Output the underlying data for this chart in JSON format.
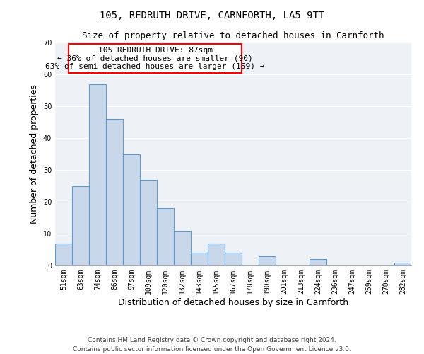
{
  "title": "105, REDRUTH DRIVE, CARNFORTH, LA5 9TT",
  "subtitle": "Size of property relative to detached houses in Carnforth",
  "xlabel": "Distribution of detached houses by size in Carnforth",
  "ylabel": "Number of detached properties",
  "bar_labels": [
    "51sqm",
    "63sqm",
    "74sqm",
    "86sqm",
    "97sqm",
    "109sqm",
    "120sqm",
    "132sqm",
    "143sqm",
    "155sqm",
    "167sqm",
    "178sqm",
    "190sqm",
    "201sqm",
    "213sqm",
    "224sqm",
    "236sqm",
    "247sqm",
    "259sqm",
    "270sqm",
    "282sqm"
  ],
  "bar_values": [
    7,
    25,
    57,
    46,
    35,
    27,
    18,
    11,
    4,
    7,
    4,
    0,
    3,
    0,
    0,
    2,
    0,
    0,
    0,
    0,
    1
  ],
  "bar_color": "#c8d8ea",
  "bar_edge_color": "#5b9bd5",
  "annotation_line1": "105 REDRUTH DRIVE: 87sqm",
  "annotation_line2": "← 36% of detached houses are smaller (90)",
  "annotation_line3": "63% of semi-detached houses are larger (159) →",
  "ylim": [
    0,
    70
  ],
  "yticks": [
    0,
    10,
    20,
    30,
    40,
    50,
    60,
    70
  ],
  "bg_color": "#eef2f7",
  "grid_color": "#ffffff",
  "footer_line1": "Contains HM Land Registry data © Crown copyright and database right 2024.",
  "footer_line2": "Contains public sector information licensed under the Open Government Licence v3.0.",
  "title_fontsize": 10,
  "subtitle_fontsize": 9,
  "axis_label_fontsize": 9,
  "tick_fontsize": 7,
  "annotation_fontsize": 8,
  "footer_fontsize": 6.5
}
